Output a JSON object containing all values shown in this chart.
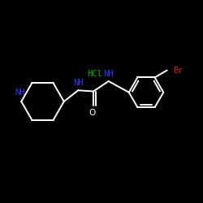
{
  "background_color": "#000000",
  "bond_color": "#ffffff",
  "NH_color": "#3333ff",
  "HCl_color": "#00bb00",
  "Br_color": "#cc2200",
  "NH_label": "NH",
  "HCl_label": "HCl",
  "O_label": "O",
  "Br_label": "Br",
  "figsize": [
    2.5,
    2.5
  ],
  "dpi": 100
}
